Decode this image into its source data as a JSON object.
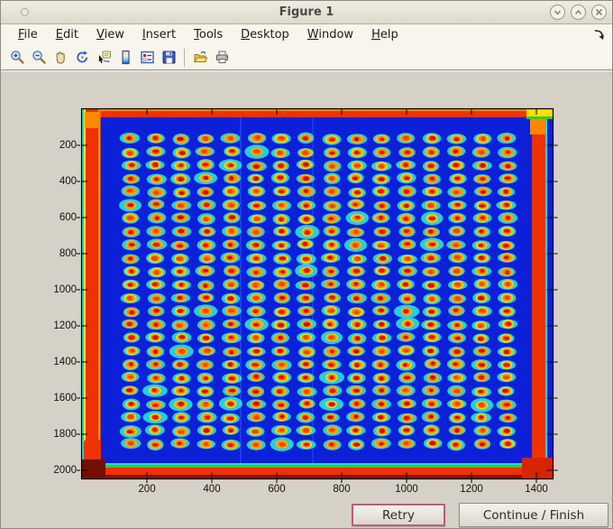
{
  "window": {
    "title": "Figure 1",
    "controls": [
      {
        "name": "minimize",
        "glyph": "chevron-down"
      },
      {
        "name": "maximize",
        "glyph": "chevron-up"
      },
      {
        "name": "close",
        "glyph": "x"
      }
    ]
  },
  "menu": {
    "items": [
      "File",
      "Edit",
      "View",
      "Insert",
      "Tools",
      "Desktop",
      "Window",
      "Help"
    ]
  },
  "toolbar": {
    "icons": [
      "zoom-in",
      "zoom-out",
      "pan",
      "rotate-3d",
      "data-cursor",
      "colorbar",
      "legend",
      "save",
      "separator",
      "open",
      "print"
    ]
  },
  "chart_data": {
    "type": "heatmap",
    "title": "",
    "xlabel": "",
    "ylabel": "",
    "colormap": "jet",
    "description": "Pseudocolor (jet) image of a scanned 384-spot microplate array: deep blue background, 16 columns x 24 rows of spots with red cores, yellow-orange rings and cyan halos, saturated red borders along the plate edges.",
    "xlim": [
      0,
      1450
    ],
    "ylim": [
      0,
      2045
    ],
    "x_ticks": [
      200,
      400,
      600,
      800,
      1000,
      1200,
      1400
    ],
    "y_ticks": [
      200,
      400,
      600,
      800,
      1000,
      1200,
      1400,
      1600,
      1800,
      2000
    ],
    "grid": {
      "cols": 16,
      "rows": 24,
      "x0": 150,
      "dx": 77.3,
      "y0": 164,
      "dy": 73.5
    },
    "colors": {
      "background": "#0c20d8",
      "spot_core": "#e01800",
      "spot_ring": "#ffc400",
      "spot_mid": "#ff8800",
      "spot_halo": "#28dee0",
      "edge_hot": "#ee3200",
      "edge_orange": "#ff8800",
      "edge_yellow": "#ffe000",
      "edge_green": "#3cc82a",
      "edge_cyan": "#22d8d8",
      "edge_dark": "#8c1200"
    }
  },
  "buttons": {
    "retry": "Retry",
    "continue": "Continue / Finish"
  }
}
